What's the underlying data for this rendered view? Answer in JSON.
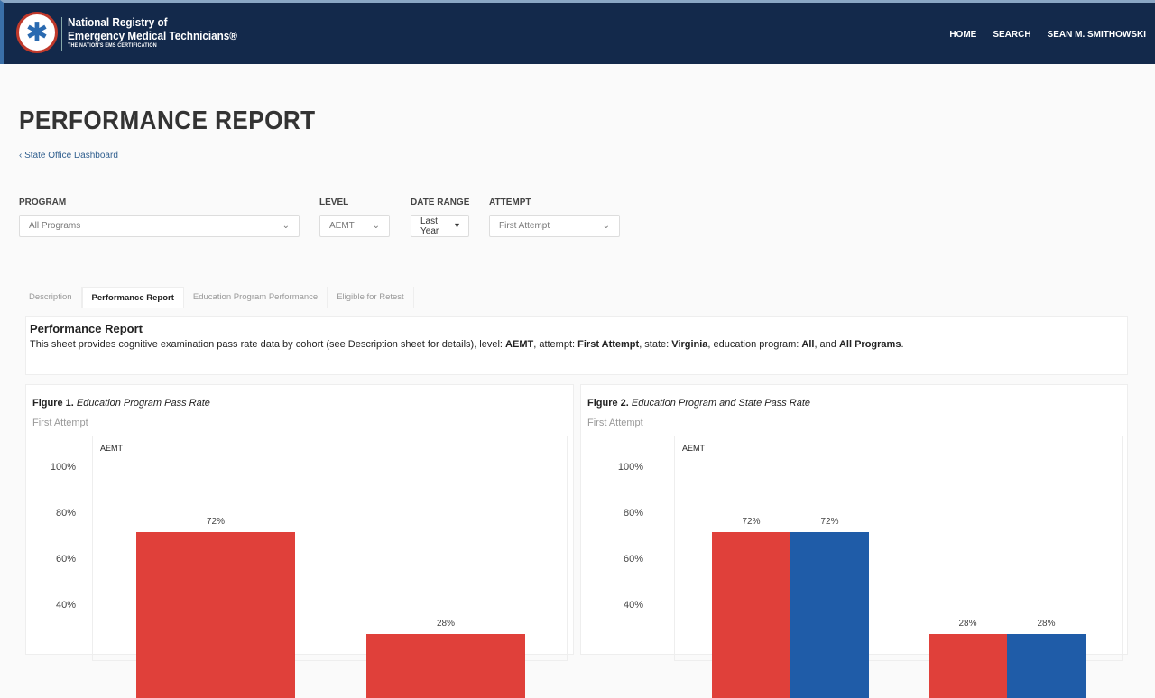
{
  "header": {
    "brand_line1": "National Registry of",
    "brand_line2": "Emergency Medical Technicians®",
    "tagline": "THE NATION'S EMS CERTIFICATION",
    "logo_icon": "star-of-life-icon",
    "nav": [
      "HOME",
      "SEARCH",
      "SEAN M. SMITHOWSKI"
    ]
  },
  "page": {
    "title": "PERFORMANCE REPORT",
    "breadcrumb": "State Office Dashboard"
  },
  "filters": {
    "program": {
      "label": "PROGRAM",
      "value": "All Programs"
    },
    "level": {
      "label": "LEVEL",
      "value": "AEMT"
    },
    "date_range": {
      "label": "DATE RANGE",
      "value": "Last Year"
    },
    "attempt": {
      "label": "ATTEMPT",
      "value": "First Attempt"
    }
  },
  "tabs": [
    "Description",
    "Performance Report",
    "Education Program Performance",
    "Eligible for Retest"
  ],
  "active_tab": "Performance Report",
  "description": {
    "title": "Performance Report",
    "text_pre": "This sheet provides cognitive examination pass rate data by cohort (see Description sheet for details), level: ",
    "level": "AEMT",
    "t2": ", attempt: ",
    "attempt": "First Attempt",
    "t3": ", state: ",
    "state": "Virginia",
    "t4": ", education program: ",
    "program": "All",
    "t5": ", and ",
    "programs": "All Programs",
    "t6": "."
  },
  "colors": {
    "header": "#13294b",
    "red": "#e0403a",
    "blue": "#1f5ca8"
  },
  "chart_data": [
    {
      "type": "bar",
      "figure": "Figure 1.",
      "title": "Education Program Pass Rate",
      "subtitle": "First Attempt",
      "panel_label": "AEMT",
      "yticks": [
        "100%",
        "80%",
        "60%",
        "40%"
      ],
      "ylim": [
        0,
        100
      ],
      "series": [
        {
          "color": "#e0403a",
          "values": [
            72,
            28
          ],
          "labels": [
            "72%",
            "28%"
          ]
        }
      ]
    },
    {
      "type": "bar",
      "figure": "Figure 2.",
      "title": "Education Program and State Pass Rate",
      "subtitle": "First Attempt",
      "panel_label": "AEMT",
      "yticks": [
        "100%",
        "80%",
        "60%",
        "40%"
      ],
      "ylim": [
        0,
        100
      ],
      "series": [
        {
          "color": "#e0403a",
          "values": [
            72,
            28
          ],
          "labels": [
            "72%",
            "28%"
          ]
        },
        {
          "color": "#1f5ca8",
          "values": [
            72,
            28
          ],
          "labels": [
            "72%",
            "28%"
          ]
        }
      ]
    }
  ]
}
